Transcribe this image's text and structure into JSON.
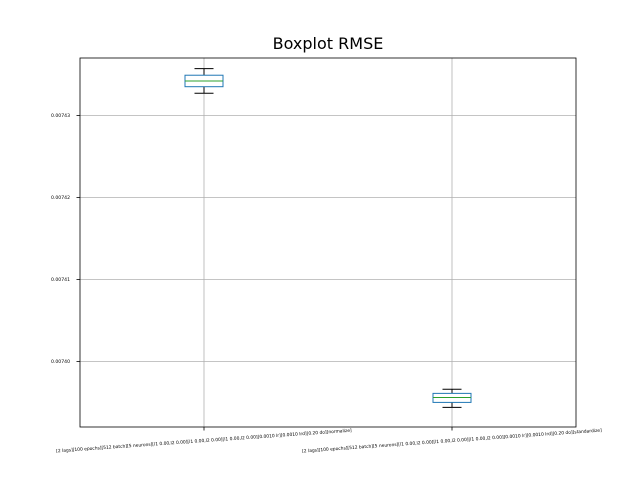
{
  "chart_data": {
    "type": "boxplot",
    "title": "Boxplot RMSE",
    "xlabel": "",
    "ylabel": "",
    "ylim": [
      0.007392,
      0.007437
    ],
    "yticks": [
      {
        "value": 0.0074,
        "label": "0.00740"
      },
      {
        "value": 0.00741,
        "label": "0.00741"
      },
      {
        "value": 0.00742,
        "label": "0.00742"
      },
      {
        "value": 0.00743,
        "label": "0.00743"
      }
    ],
    "grid": true,
    "categories": [
      "[2 lags][100 epochs][512 batch][5 neurons][l1 0.00,l2 0.00][l1 0.00,l2 0.00][l1 0.00,l2 0.00][0.0010 lr][0.0010 lrd][0.20 do][normalize]",
      "[2 lags][100 epochs][512 batch][5 neurons][l1 0.00,l2 0.00][l1 0.00,l2 0.00][l1 0.00,l2 0.00][0.0010 lr][0.0010 lrd][0.20 do][standardize]"
    ],
    "boxes": [
      {
        "whisker_low": 0.0074327,
        "q1": 0.0074335,
        "median": 0.0074342,
        "q3": 0.0074349,
        "whisker_high": 0.0074357
      },
      {
        "whisker_low": 0.0073944,
        "q1": 0.007395,
        "median": 0.0073956,
        "q3": 0.0073961,
        "whisker_high": 0.0073966
      }
    ],
    "colors": {
      "box": "#1f77b4",
      "median": "#2ca02c",
      "whisker": "#000000",
      "grid": "#b0b0b0",
      "axes": "#000000"
    }
  }
}
